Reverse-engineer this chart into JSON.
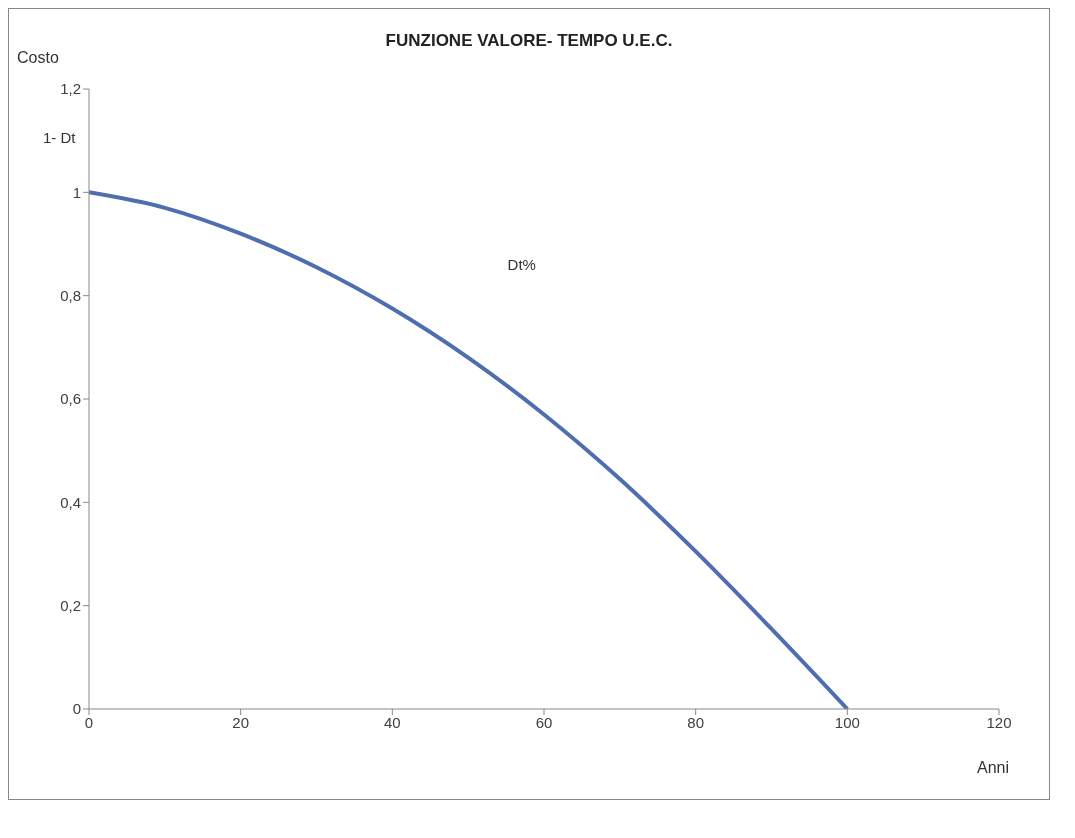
{
  "chart_data": {
    "type": "line",
    "title": "FUNZIONE VALORE- TEMPO U.E.C.",
    "xlabel": "Anni",
    "ylabel": "Costo",
    "annotations": [
      "1- Dt",
      "Dt%"
    ],
    "x": [
      0,
      10,
      20,
      30,
      40,
      50,
      60,
      70,
      80,
      90,
      100
    ],
    "series": [
      {
        "color": "#4f6eb0",
        "values": [
          1.0,
          0.97,
          0.92,
          0.855,
          0.775,
          0.68,
          0.57,
          0.445,
          0.305,
          0.155,
          0
        ]
      }
    ],
    "xlim": [
      0,
      120
    ],
    "xticks": [
      0,
      20,
      40,
      60,
      80,
      100,
      120
    ],
    "ylim": [
      0,
      1.2
    ],
    "yticks": [
      0,
      {
        "value": 0.2,
        "label": "0,2"
      },
      {
        "value": 0.4,
        "label": "0,4"
      },
      {
        "value": 0.6,
        "label": "0,6"
      },
      {
        "value": 0.8,
        "label": "0,8"
      },
      1,
      {
        "value": 1.2,
        "label": "1,2"
      }
    ],
    "grid": false,
    "legend": false,
    "marker": "none",
    "line_style": "solid"
  }
}
